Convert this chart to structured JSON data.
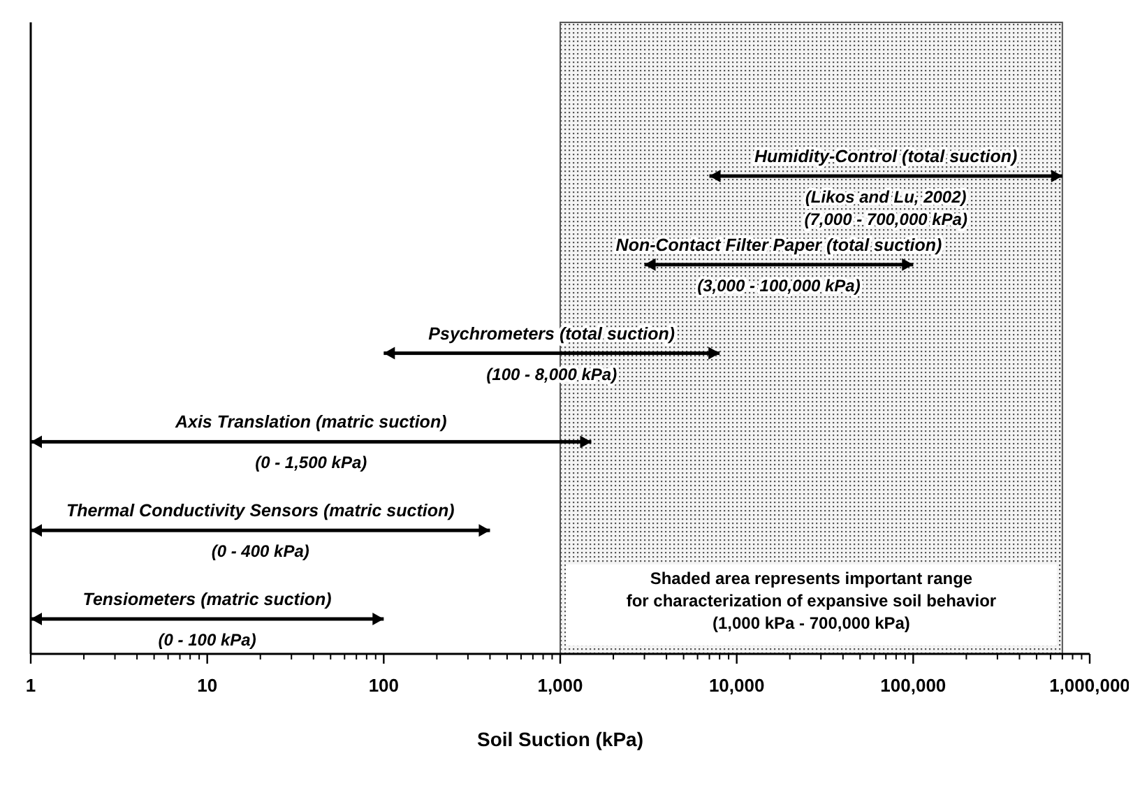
{
  "chart_data": {
    "type": "bar",
    "orientation": "horizontal",
    "log": "x",
    "xlabel": "Soil Suction (kPa)",
    "categories": [
      null,
      null,
      null,
      null,
      null,
      null
    ],
    "annotations": [
      "Humidity-Control  (total suction)\n(Likos and Lu, 2002)\n(7,000 - 700,000 kPa)",
      "Non-Contact Filter Paper (total suction)\n(3,000 - 100,000 kPa)",
      "Psychrometers (total suction)\n(100 - 8,000 kPa)",
      "Axis Translation (matric suction)\n(0 - 1,500 kPa)",
      "Thermal Conductivity Sensors  (matric suction)\n(0 - 400 kPa)",
      "Tensiometers (matric suction)\n(0 - 100 kPa)"
    ],
    "base": [
      7000,
      3000,
      100,
      1,
      1,
      1
    ],
    "values": [
      693000,
      97000,
      7900,
      1499,
      399,
      99
    ],
    "color": "#000000",
    "xlim": [
      1,
      1000000
    ],
    "xticks": [
      1,
      10,
      100,
      {
        "value": 1000,
        "label": "1,000"
      },
      {
        "value": 10000,
        "label": "10,000"
      },
      {
        "value": 100000,
        "label": "100,000"
      },
      {
        "value": 1000000,
        "label": "1,000,000"
      }
    ],
    "bands": [
      {
        "axis": "x",
        "from": 1000,
        "to": 700000,
        "color": "#555555",
        "label": "Shaded area represents important range\nfor characterization of expansive soil behavior\n(1,000 kPa  - 700,000 kPa)"
      }
    ],
    "grid": false
  }
}
